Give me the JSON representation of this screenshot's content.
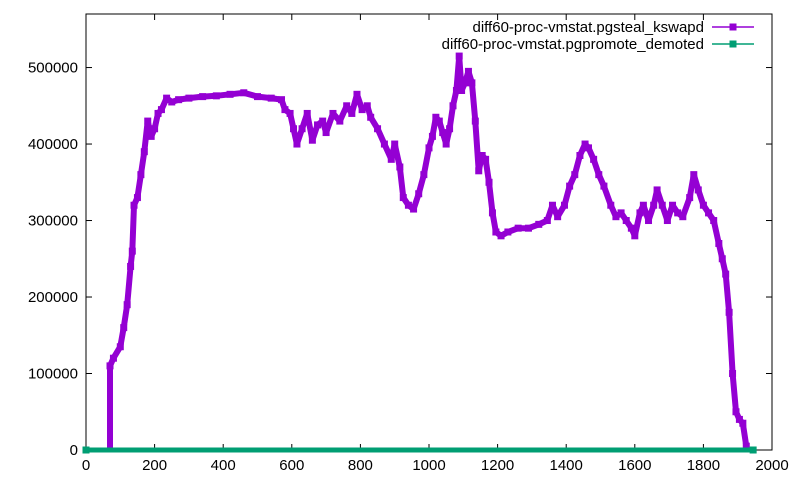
{
  "chart_data": {
    "type": "line",
    "title": "",
    "xlabel": "",
    "ylabel": "",
    "xlim": [
      0,
      2000
    ],
    "ylim": [
      0,
      570000
    ],
    "x_ticks": [
      "0",
      "200",
      "400",
      "600",
      "800",
      "1000",
      "1200",
      "1400",
      "1600",
      "1800",
      "2000"
    ],
    "y_ticks": [
      "0",
      "100000",
      "200000",
      "300000",
      "400000",
      "500000"
    ],
    "grid": false,
    "legend_position": "top-right",
    "series": [
      {
        "name": "diff60-proc-vmstat.pgsteal_kswapd",
        "color": "#9400d3",
        "marker": "square",
        "points": [
          [
            70,
            0
          ],
          [
            70,
            110000
          ],
          [
            80,
            120000
          ],
          [
            100,
            135000
          ],
          [
            110,
            160000
          ],
          [
            120,
            190000
          ],
          [
            130,
            240000
          ],
          [
            135,
            260000
          ],
          [
            140,
            320000
          ],
          [
            150,
            330000
          ],
          [
            160,
            360000
          ],
          [
            170,
            390000
          ],
          [
            180,
            430000
          ],
          [
            190,
            410000
          ],
          [
            200,
            420000
          ],
          [
            210,
            440000
          ],
          [
            220,
            445000
          ],
          [
            235,
            460000
          ],
          [
            250,
            455000
          ],
          [
            270,
            458000
          ],
          [
            300,
            460000
          ],
          [
            340,
            462000
          ],
          [
            380,
            463000
          ],
          [
            420,
            465000
          ],
          [
            460,
            467000
          ],
          [
            500,
            462000
          ],
          [
            540,
            460000
          ],
          [
            570,
            458000
          ],
          [
            580,
            445000
          ],
          [
            595,
            440000
          ],
          [
            605,
            420000
          ],
          [
            615,
            400000
          ],
          [
            630,
            420000
          ],
          [
            645,
            440000
          ],
          [
            660,
            405000
          ],
          [
            675,
            425000
          ],
          [
            690,
            430000
          ],
          [
            700,
            415000
          ],
          [
            720,
            440000
          ],
          [
            740,
            430000
          ],
          [
            760,
            450000
          ],
          [
            775,
            440000
          ],
          [
            790,
            465000
          ],
          [
            805,
            445000
          ],
          [
            820,
            450000
          ],
          [
            830,
            435000
          ],
          [
            850,
            420000
          ],
          [
            870,
            400000
          ],
          [
            890,
            380000
          ],
          [
            900,
            400000
          ],
          [
            915,
            370000
          ],
          [
            925,
            330000
          ],
          [
            940,
            320000
          ],
          [
            955,
            315000
          ],
          [
            970,
            335000
          ],
          [
            985,
            360000
          ],
          [
            1000,
            395000
          ],
          [
            1010,
            410000
          ],
          [
            1020,
            435000
          ],
          [
            1030,
            430000
          ],
          [
            1040,
            415000
          ],
          [
            1050,
            400000
          ],
          [
            1060,
            420000
          ],
          [
            1070,
            450000
          ],
          [
            1080,
            470000
          ],
          [
            1088,
            515000
          ],
          [
            1095,
            470000
          ],
          [
            1105,
            480000
          ],
          [
            1115,
            495000
          ],
          [
            1125,
            480000
          ],
          [
            1135,
            430000
          ],
          [
            1145,
            365000
          ],
          [
            1155,
            385000
          ],
          [
            1165,
            380000
          ],
          [
            1175,
            350000
          ],
          [
            1185,
            310000
          ],
          [
            1195,
            285000
          ],
          [
            1210,
            280000
          ],
          [
            1230,
            285000
          ],
          [
            1260,
            290000
          ],
          [
            1290,
            290000
          ],
          [
            1320,
            295000
          ],
          [
            1345,
            300000
          ],
          [
            1360,
            320000
          ],
          [
            1375,
            305000
          ],
          [
            1395,
            320000
          ],
          [
            1410,
            345000
          ],
          [
            1425,
            360000
          ],
          [
            1440,
            385000
          ],
          [
            1455,
            400000
          ],
          [
            1465,
            395000
          ],
          [
            1480,
            380000
          ],
          [
            1495,
            360000
          ],
          [
            1510,
            345000
          ],
          [
            1530,
            320000
          ],
          [
            1545,
            305000
          ],
          [
            1560,
            310000
          ],
          [
            1575,
            300000
          ],
          [
            1590,
            290000
          ],
          [
            1600,
            280000
          ],
          [
            1615,
            310000
          ],
          [
            1625,
            320000
          ],
          [
            1640,
            300000
          ],
          [
            1655,
            320000
          ],
          [
            1665,
            340000
          ],
          [
            1680,
            320000
          ],
          [
            1695,
            300000
          ],
          [
            1710,
            320000
          ],
          [
            1725,
            310000
          ],
          [
            1740,
            305000
          ],
          [
            1760,
            330000
          ],
          [
            1772,
            360000
          ],
          [
            1785,
            340000
          ],
          [
            1800,
            320000
          ],
          [
            1815,
            310000
          ],
          [
            1830,
            300000
          ],
          [
            1845,
            270000
          ],
          [
            1855,
            250000
          ],
          [
            1865,
            230000
          ],
          [
            1875,
            180000
          ],
          [
            1885,
            100000
          ],
          [
            1895,
            50000
          ],
          [
            1905,
            40000
          ],
          [
            1915,
            35000
          ],
          [
            1925,
            5000
          ]
        ]
      },
      {
        "name": "diff60-proc-vmstat.pgpromote_demoted",
        "color": "#009e73",
        "marker": "square",
        "points": [
          [
            0,
            0
          ],
          [
            1945,
            0
          ]
        ]
      }
    ]
  }
}
